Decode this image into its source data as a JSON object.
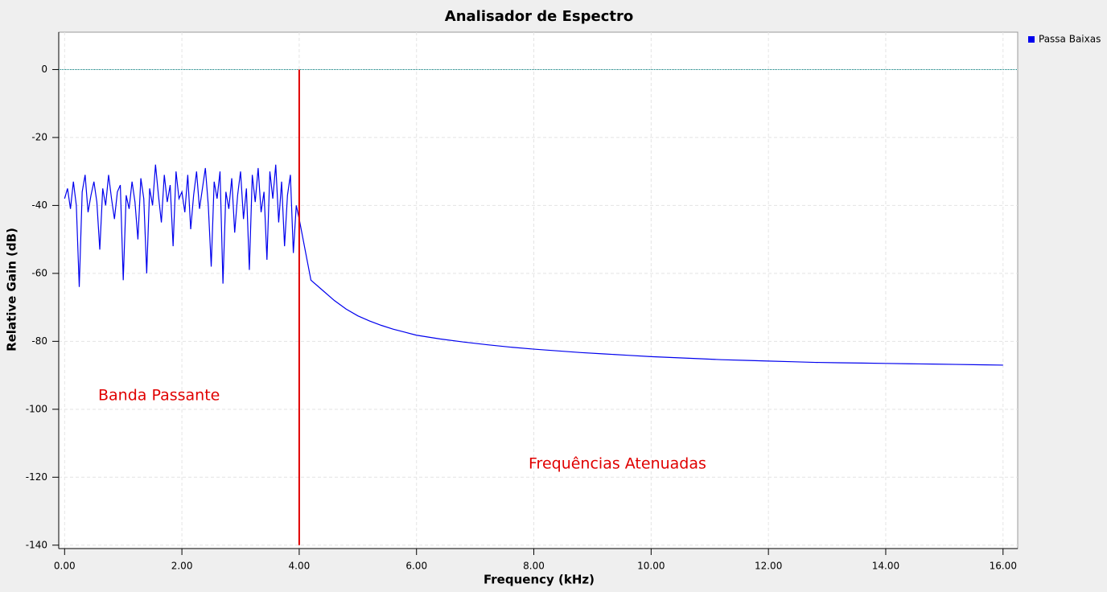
{
  "chart_data": {
    "type": "line",
    "title": "Analisador de Espectro",
    "x_label": "Frequency (kHz)",
    "y_label": "Relative Gain (dB)",
    "x": [
      0.0,
      0.05,
      0.1,
      0.15,
      0.2,
      0.25,
      0.3,
      0.35,
      0.4,
      0.45,
      0.5,
      0.55,
      0.6,
      0.65,
      0.7,
      0.75,
      0.8,
      0.85,
      0.9,
      0.95,
      1.0,
      1.05,
      1.1,
      1.15,
      1.2,
      1.25,
      1.3,
      1.35,
      1.4,
      1.45,
      1.5,
      1.55,
      1.6,
      1.65,
      1.7,
      1.75,
      1.8,
      1.85,
      1.9,
      1.95,
      2.0,
      2.05,
      2.1,
      2.15,
      2.2,
      2.25,
      2.3,
      2.35,
      2.4,
      2.45,
      2.5,
      2.55,
      2.6,
      2.65,
      2.7,
      2.75,
      2.8,
      2.85,
      2.9,
      2.95,
      3.0,
      3.05,
      3.1,
      3.15,
      3.2,
      3.25,
      3.3,
      3.35,
      3.4,
      3.45,
      3.5,
      3.55,
      3.6,
      3.65,
      3.7,
      3.75,
      3.8,
      3.85,
      3.9,
      3.95,
      4.0,
      4.2,
      4.4,
      4.6,
      4.8,
      5.0,
      5.2,
      5.4,
      5.6,
      5.8,
      6.0,
      6.4,
      6.8,
      7.2,
      7.6,
      8.0,
      8.4,
      8.8,
      9.2,
      9.6,
      10.0,
      10.4,
      10.8,
      11.2,
      11.6,
      12.0,
      12.4,
      12.8,
      13.2,
      13.6,
      14.0,
      14.4,
      14.8,
      15.2,
      15.6,
      16.0
    ],
    "series": [
      {
        "name": "Passa Baixas",
        "color": "#0000ee",
        "values": [
          -38,
          -35,
          -41,
          -33,
          -40,
          -64,
          -36,
          -31,
          -42,
          -37,
          -33,
          -39,
          -53,
          -35,
          -40,
          -31,
          -38,
          -44,
          -36,
          -34,
          -62,
          -37,
          -41,
          -33,
          -39,
          -50,
          -32,
          -38,
          -60,
          -35,
          -40,
          -28,
          -37,
          -45,
          -31,
          -39,
          -34,
          -52,
          -30,
          -38,
          -36,
          -42,
          -31,
          -47,
          -37,
          -30,
          -41,
          -35,
          -29,
          -40,
          -58,
          -33,
          -38,
          -30,
          -63,
          -36,
          -41,
          -32,
          -48,
          -37,
          -30,
          -44,
          -35,
          -59,
          -31,
          -39,
          -29,
          -42,
          -36,
          -56,
          -30,
          -38,
          -28,
          -45,
          -33,
          -52,
          -37,
          -31,
          -54,
          -40,
          -44,
          -62,
          -65,
          -68,
          -70.5,
          -72.5,
          -74,
          -75.3,
          -76.4,
          -77.3,
          -78.2,
          -79.3,
          -80.2,
          -81,
          -81.7,
          -82.3,
          -82.8,
          -83.3,
          -83.7,
          -84.1,
          -84.5,
          -84.8,
          -85.1,
          -85.4,
          -85.6,
          -85.8,
          -86,
          -86.2,
          -86.3,
          -86.4,
          -86.5,
          -86.6,
          -86.7,
          -86.8,
          -86.9,
          -87
        ]
      }
    ],
    "xlim": [
      -0.1,
      16.25
    ],
    "ylim": [
      -141,
      11
    ],
    "xticks": [
      {
        "value": 0,
        "label": "0.00"
      },
      {
        "value": 2,
        "label": "2.00"
      },
      {
        "value": 4,
        "label": "4.00"
      },
      {
        "value": 6,
        "label": "6.00"
      },
      {
        "value": 8,
        "label": "8.00"
      },
      {
        "value": 10,
        "label": "10.00"
      },
      {
        "value": 12,
        "label": "12.00"
      },
      {
        "value": 14,
        "label": "14.00"
      },
      {
        "value": 16,
        "label": "16.00"
      }
    ],
    "yticks": [
      0,
      -20,
      -40,
      -60,
      -80,
      -100,
      -120,
      -140
    ],
    "grid": true,
    "legend": "top-right",
    "hline": {
      "y": 0,
      "color": "#008080"
    },
    "vline": {
      "x": 4,
      "y_from": 0,
      "y_to": -140,
      "color": "#e00000"
    },
    "annotations": [
      {
        "text": "Banda Passante",
        "color": "#e00000"
      },
      {
        "text": "Frequências Atenuadas",
        "color": "#e00000"
      }
    ]
  }
}
